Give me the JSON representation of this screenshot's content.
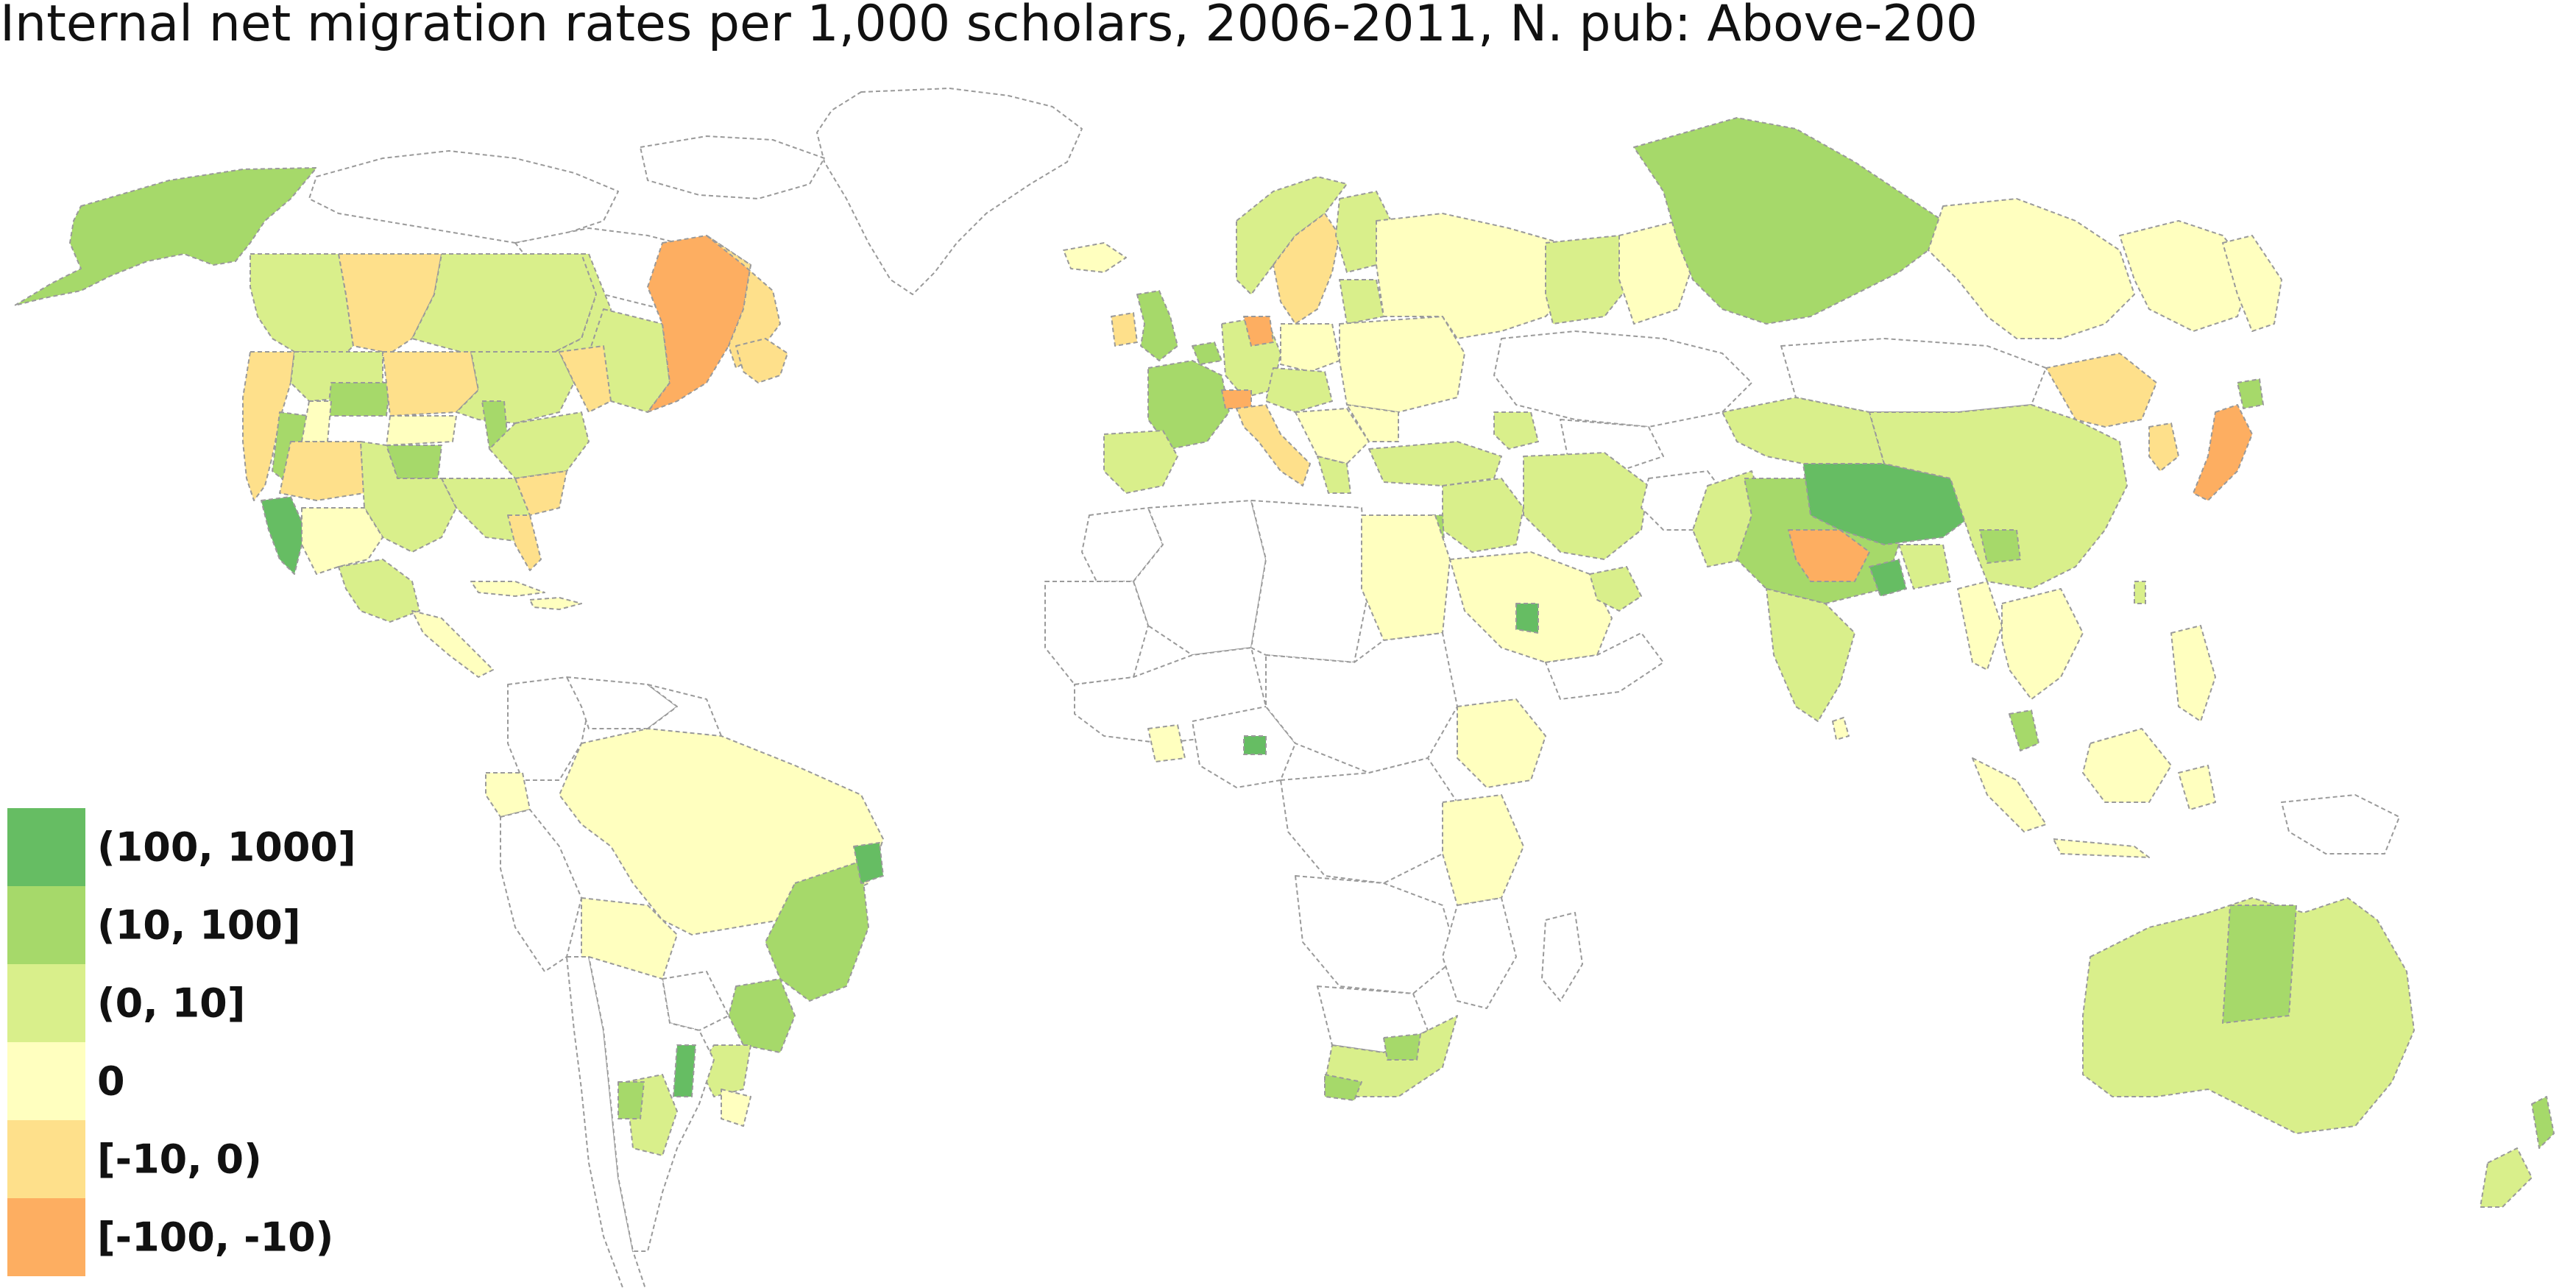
{
  "title": "Internal net migration rates per 1,000 scholars, 2006-2011, N. pub: Above-200",
  "legend": {
    "items": [
      {
        "label": "(100, 1000]",
        "color": "#66bd63"
      },
      {
        "label": "(10, 100]",
        "color": "#a6d96a"
      },
      {
        "label": "(0, 10]",
        "color": "#d9ef8b"
      },
      {
        "label": "0",
        "color": "#ffffbf"
      },
      {
        "label": "[-10, 0)",
        "color": "#fee08b"
      },
      {
        "label": "[-100, -10)",
        "color": "#fdae61"
      }
    ]
  },
  "colors": {
    "background": "#ffffff",
    "border": "#9a9a9a",
    "no_data_fill": "#ffffff"
  }
}
